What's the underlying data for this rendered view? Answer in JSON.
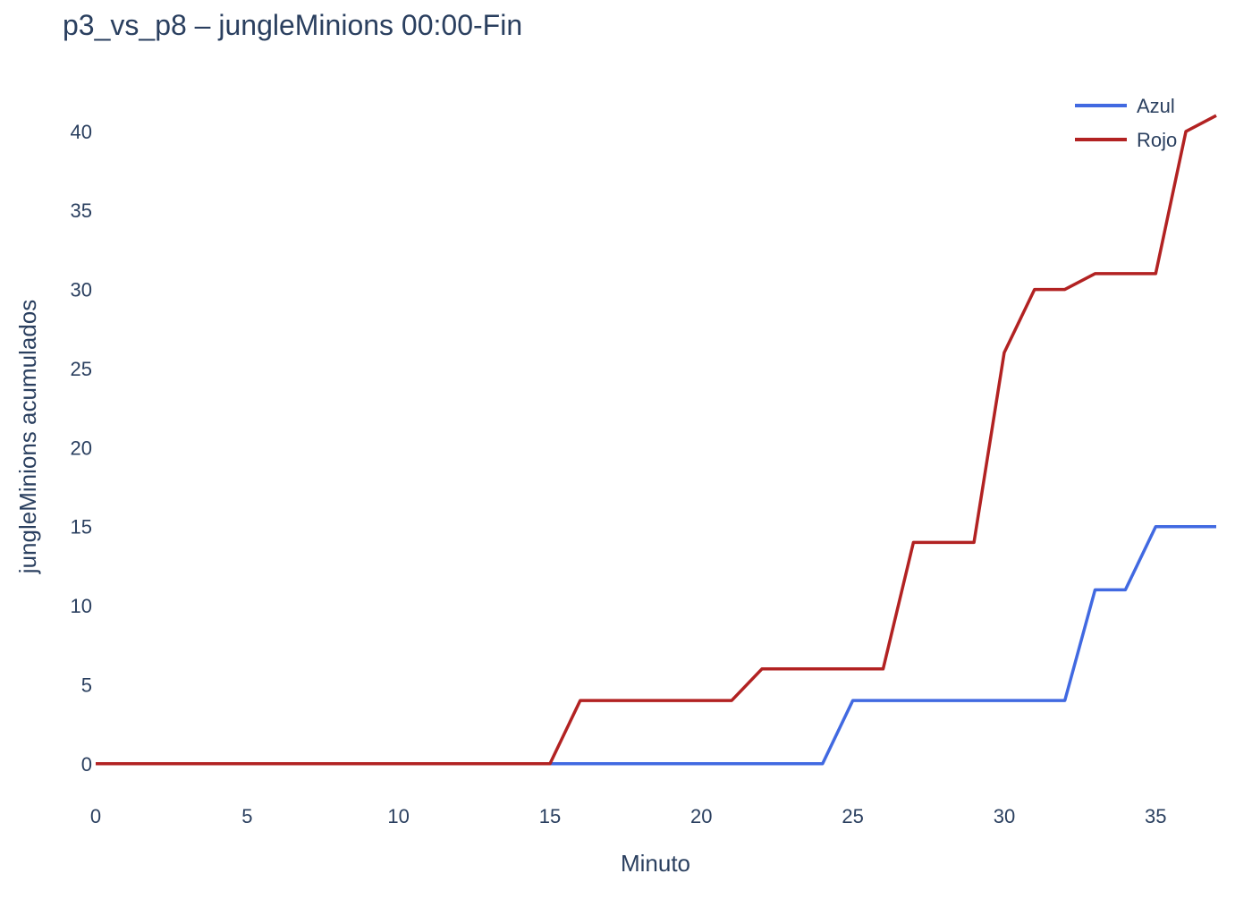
{
  "chart_data": {
    "type": "line",
    "title": "p3_vs_p8 – jungleMinions 00:00-Fin",
    "xlabel": "Minuto",
    "ylabel": "jungleMinions acumulados",
    "xlim": [
      0,
      37
    ],
    "ylim": [
      -2.5,
      43.5
    ],
    "xticks": [
      0,
      5,
      10,
      15,
      20,
      25,
      30,
      35
    ],
    "yticks": [
      0,
      5,
      10,
      15,
      20,
      25,
      30,
      35,
      40
    ],
    "grid": false,
    "legend_position": "top-right",
    "x": [
      0,
      1,
      2,
      3,
      4,
      5,
      6,
      7,
      8,
      9,
      10,
      11,
      12,
      13,
      14,
      15,
      16,
      17,
      18,
      19,
      20,
      21,
      22,
      23,
      24,
      25,
      26,
      27,
      28,
      29,
      30,
      31,
      32,
      33,
      34,
      35,
      36,
      37
    ],
    "series": [
      {
        "name": "Azul",
        "color": "#4169e1",
        "values": [
          0,
          0,
          0,
          0,
          0,
          0,
          0,
          0,
          0,
          0,
          0,
          0,
          0,
          0,
          0,
          0,
          0,
          0,
          0,
          0,
          0,
          0,
          0,
          0,
          0,
          4,
          4,
          4,
          4,
          4,
          4,
          4,
          4,
          11,
          11,
          15,
          15,
          15
        ]
      },
      {
        "name": "Rojo",
        "color": "#b22222",
        "values": [
          0,
          0,
          0,
          0,
          0,
          0,
          0,
          0,
          0,
          0,
          0,
          0,
          0,
          0,
          0,
          0,
          4,
          4,
          4,
          4,
          4,
          4,
          6,
          6,
          6,
          6,
          6,
          14,
          14,
          14,
          26,
          30,
          30,
          31,
          31,
          31,
          40,
          41
        ]
      }
    ]
  }
}
